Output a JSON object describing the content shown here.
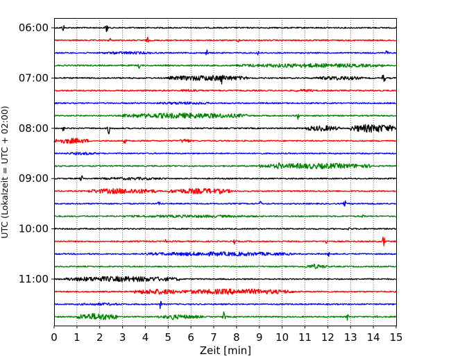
{
  "chart_data": {
    "type": "line",
    "title": "",
    "xlabel": "Zeit  [min]",
    "ylabel": "UTC (Lokalzeit = UTC + 02:00)",
    "xlim": [
      0,
      15
    ],
    "x_ticks": [
      0,
      1,
      2,
      3,
      4,
      5,
      6,
      7,
      8,
      9,
      10,
      11,
      12,
      13,
      14,
      15
    ],
    "x_tick_labels": [
      "0",
      "1",
      "2",
      "3",
      "4",
      "5",
      "6",
      "7",
      "8",
      "9",
      "10",
      "11",
      "12",
      "13",
      "14",
      "15"
    ],
    "y_tick_labels": [
      "06:00",
      "07:00",
      "08:00",
      "09:00",
      "10:00",
      "11:00"
    ],
    "grid": "vertical dotted",
    "legend": "none",
    "traces_per_hour": 4,
    "trace_minutes": 15,
    "color_cycle": [
      "#000000",
      "#ff0000",
      "#0000ff",
      "#008000"
    ],
    "series": [
      {
        "start": "06:00",
        "events": [
          {
            "t": 0.4,
            "a": 5
          },
          {
            "t": 2.3,
            "a": 9
          }
        ],
        "bursts": []
      },
      {
        "start": "06:15",
        "events": [
          {
            "t": 2.45,
            "a": 4
          },
          {
            "t": 4.1,
            "a": 4
          },
          {
            "t": 8.1,
            "a": 3
          }
        ],
        "bursts": []
      },
      {
        "start": "06:30",
        "events": [
          {
            "t": 6.7,
            "a": 4
          },
          {
            "t": 8.95,
            "a": 4
          },
          {
            "t": 14.6,
            "a": 4
          }
        ],
        "bursts": [
          {
            "t0": 2.0,
            "t1": 4.5,
            "a": 2
          }
        ]
      },
      {
        "start": "06:45",
        "events": [
          {
            "t": 3.75,
            "a": 5
          }
        ],
        "bursts": [
          {
            "t0": 8.0,
            "t1": 14.5,
            "a": 3
          }
        ]
      },
      {
        "start": "07:00",
        "events": [
          {
            "t": 7.35,
            "a": 10
          },
          {
            "t": 14.45,
            "a": 10
          }
        ],
        "bursts": [
          {
            "t0": 5.0,
            "t1": 8.5,
            "a": 4
          },
          {
            "t0": 11.5,
            "t1": 13.5,
            "a": 3
          }
        ]
      },
      {
        "start": "07:15",
        "events": [],
        "bursts": [
          {
            "t0": 5.5,
            "t1": 6.5,
            "a": 2
          },
          {
            "t0": 10.5,
            "t1": 11.5,
            "a": 2
          }
        ]
      },
      {
        "start": "07:30",
        "events": [],
        "bursts": [
          {
            "t0": 4.5,
            "t1": 7.0,
            "a": 2
          }
        ]
      },
      {
        "start": "07:45",
        "events": [
          {
            "t": 10.7,
            "a": 5
          }
        ],
        "bursts": [
          {
            "t0": 3.0,
            "t1": 8.5,
            "a": 4
          }
        ]
      },
      {
        "start": "08:00",
        "events": [
          {
            "t": 0.4,
            "a": 4
          },
          {
            "t": 2.4,
            "a": 9
          }
        ],
        "bursts": [
          {
            "t0": 11.0,
            "t1": 12.5,
            "a": 4
          },
          {
            "t0": 13.0,
            "t1": 15.0,
            "a": 6
          }
        ]
      },
      {
        "start": "08:15",
        "events": [
          {
            "t": 3.1,
            "a": 4
          }
        ],
        "bursts": [
          {
            "t0": 0.0,
            "t1": 1.5,
            "a": 4
          },
          {
            "t0": 5.5,
            "t1": 6.0,
            "a": 3
          }
        ]
      },
      {
        "start": "08:30",
        "events": [],
        "bursts": [
          {
            "t0": 0.5,
            "t1": 2.0,
            "a": 2
          }
        ]
      },
      {
        "start": "08:45",
        "events": [
          {
            "t": 9.85,
            "a": 6
          }
        ],
        "bursts": [
          {
            "t0": 9.0,
            "t1": 14.0,
            "a": 4
          }
        ]
      },
      {
        "start": "09:00",
        "events": [
          {
            "t": 1.2,
            "a": 5
          }
        ],
        "bursts": [
          {
            "t0": 2.0,
            "t1": 5.0,
            "a": 2
          }
        ]
      },
      {
        "start": "09:15",
        "events": [
          {
            "t": 7.3,
            "a": 5
          }
        ],
        "bursts": [
          {
            "t0": 1.5,
            "t1": 4.5,
            "a": 4
          },
          {
            "t0": 5.0,
            "t1": 7.8,
            "a": 4
          }
        ]
      },
      {
        "start": "09:30",
        "events": [
          {
            "t": 4.6,
            "a": 3
          },
          {
            "t": 9.05,
            "a": 4
          },
          {
            "t": 12.75,
            "a": 5
          }
        ],
        "bursts": []
      },
      {
        "start": "09:45",
        "events": [
          {
            "t": 13.55,
            "a": 3
          }
        ],
        "bursts": [
          {
            "t0": 3.0,
            "t1": 9.0,
            "a": 2
          }
        ]
      },
      {
        "start": "10:00",
        "events": [
          {
            "t": 12.95,
            "a": 3
          }
        ],
        "bursts": []
      },
      {
        "start": "10:15",
        "events": [
          {
            "t": 4.9,
            "a": 3
          },
          {
            "t": 7.9,
            "a": 5
          },
          {
            "t": 11.95,
            "a": 4
          },
          {
            "t": 14.45,
            "a": 10
          }
        ],
        "bursts": []
      },
      {
        "start": "10:30",
        "events": [
          {
            "t": 12.05,
            "a": 4
          }
        ],
        "bursts": [
          {
            "t0": 4.0,
            "t1": 10.5,
            "a": 3
          }
        ]
      },
      {
        "start": "10:45",
        "events": [
          {
            "t": 10.55,
            "a": 3
          },
          {
            "t": 11.4,
            "a": 4
          }
        ],
        "bursts": [
          {
            "t0": 11.0,
            "t1": 12.0,
            "a": 3
          }
        ]
      },
      {
        "start": "11:00",
        "events": [
          {
            "t": 0.9,
            "a": 4
          },
          {
            "t": 3.9,
            "a": 4
          },
          {
            "t": 4.7,
            "a": 4
          }
        ],
        "bursts": [
          {
            "t0": 0.5,
            "t1": 5.5,
            "a": 4
          }
        ]
      },
      {
        "start": "11:15",
        "events": [],
        "bursts": [
          {
            "t0": 3.5,
            "t1": 5.5,
            "a": 4
          },
          {
            "t0": 5.5,
            "t1": 10.5,
            "a": 4
          }
        ]
      },
      {
        "start": "11:30",
        "events": [
          {
            "t": 4.65,
            "a": 6
          }
        ],
        "bursts": [
          {
            "t0": 1.0,
            "t1": 3.0,
            "a": 2
          }
        ]
      },
      {
        "start": "11:45",
        "events": [
          {
            "t": 5.2,
            "a": 7
          },
          {
            "t": 7.45,
            "a": 8
          },
          {
            "t": 12.85,
            "a": 5
          },
          {
            "t": 14.15,
            "a": 6
          }
        ],
        "bursts": [
          {
            "t0": 1.0,
            "t1": 2.8,
            "a": 5
          },
          {
            "t0": 4.5,
            "t1": 6.5,
            "a": 3
          }
        ]
      }
    ]
  }
}
